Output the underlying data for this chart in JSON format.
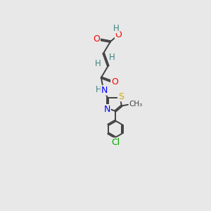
{
  "background_color": "#e8e8e8",
  "bond_color": "#404040",
  "atom_colors": {
    "O": "#ff0000",
    "N": "#0000ff",
    "S": "#ccaa00",
    "Cl": "#00aa00",
    "H": "#408080",
    "C": "#404040"
  },
  "figsize": [
    3.0,
    3.0
  ],
  "dpi": 100
}
